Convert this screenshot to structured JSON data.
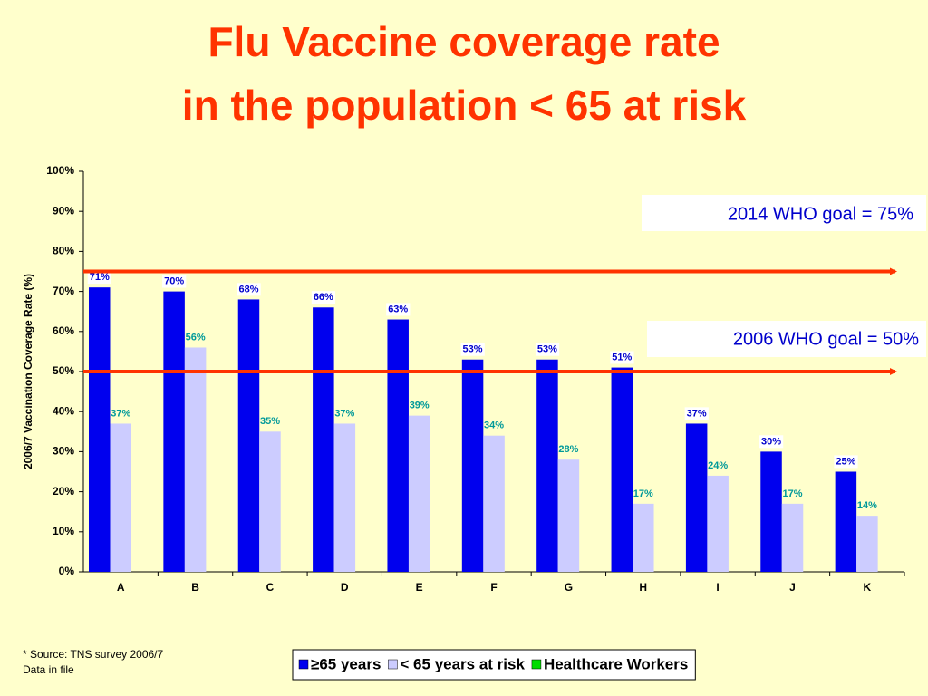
{
  "chart_data": {
    "type": "bar",
    "title": "Flu Vaccine coverage rate",
    "subtitle": "in the population < 65 at risk",
    "y_label": "2006/7 Vaccination Coverage Rate (%)",
    "categories": [
      "A",
      "B",
      "C",
      "D",
      "E",
      "F",
      "G",
      "H",
      "I",
      "J",
      "K"
    ],
    "series": [
      {
        "name": "≥65 years",
        "color": "#0000ee",
        "label_color": "#0000cc",
        "values": [
          71,
          70,
          68,
          66,
          63,
          53,
          53,
          51,
          37,
          30,
          25
        ],
        "value_labels": [
          "71%",
          "70%",
          "68%",
          "66%",
          "63%",
          "53%",
          "53%",
          "51%",
          "37%",
          "30%",
          "25%"
        ]
      },
      {
        "name": "< 65 years at risk",
        "color": "#ccccff",
        "label_color": "#009999",
        "values": [
          37,
          56,
          35,
          37,
          39,
          34,
          28,
          17,
          24,
          17,
          14
        ],
        "value_labels": [
          "37%",
          "56%",
          "35%",
          "37%",
          "39%",
          "34%",
          "28%",
          "17%",
          "24%",
          "17%",
          "14%"
        ]
      },
      {
        "name": "Healthcare Workers",
        "color": "#00dd00",
        "values": [
          null,
          null,
          null,
          null,
          null,
          null,
          null,
          null,
          null,
          null,
          null
        ]
      }
    ],
    "ylim": [
      0,
      100
    ],
    "yticks": [
      {
        "value": 0,
        "label": "0%"
      },
      {
        "value": 10,
        "label": "10%"
      },
      {
        "value": 20,
        "label": "20%"
      },
      {
        "value": 30,
        "label": "30%"
      },
      {
        "value": 40,
        "label": "40%"
      },
      {
        "value": 50,
        "label": "50%"
      },
      {
        "value": 60,
        "label": "60%"
      },
      {
        "value": 70,
        "label": "70%"
      },
      {
        "value": 80,
        "label": "80%"
      },
      {
        "value": 90,
        "label": "90%"
      },
      {
        "value": 100,
        "label": "100%"
      }
    ],
    "reference_lines": [
      {
        "value": 75,
        "label": "2014 WHO goal = 75%",
        "color": "#ff3300"
      },
      {
        "value": 50,
        "label": "2006 WHO goal = 50%",
        "color": "#ff3300"
      }
    ],
    "notes": [
      "* Source: TNS survey 2006/7",
      "Data in file"
    ]
  }
}
